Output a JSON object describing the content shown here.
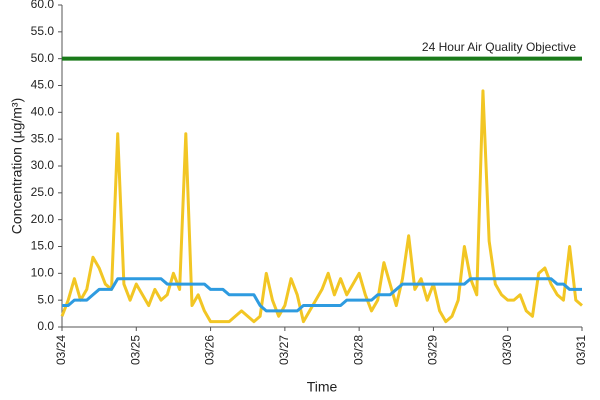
{
  "chart_data": {
    "type": "line",
    "y_label": "Concentration (µg/m³)",
    "x_label": "Time",
    "categories": [
      "03/24",
      null,
      null,
      null,
      null,
      null,
      null,
      null,
      null,
      null,
      null,
      null,
      "03/25",
      null,
      null,
      null,
      null,
      null,
      null,
      null,
      null,
      null,
      null,
      null,
      "03/26",
      null,
      null,
      null,
      null,
      null,
      null,
      null,
      null,
      null,
      null,
      null,
      "03/27",
      null,
      null,
      null,
      null,
      null,
      null,
      null,
      null,
      null,
      null,
      null,
      "03/28",
      null,
      null,
      null,
      null,
      null,
      null,
      null,
      null,
      null,
      null,
      null,
      "03/29",
      null,
      null,
      null,
      null,
      null,
      null,
      null,
      null,
      null,
      null,
      null,
      "03/30",
      null,
      null,
      null,
      null,
      null,
      null,
      null,
      null,
      null,
      null,
      null,
      "03/31"
    ],
    "series": [
      {
        "color": "#f2c624",
        "values": [
          2,
          5,
          9,
          5,
          7,
          13,
          11,
          8,
          7,
          36,
          8,
          5,
          8,
          6,
          4,
          7,
          5,
          6,
          10,
          7,
          36,
          4,
          6,
          3,
          1,
          1,
          1,
          1,
          2,
          3,
          2,
          1,
          2,
          10,
          5,
          2,
          4,
          9,
          6,
          1,
          3,
          5,
          7,
          10,
          6,
          9,
          6,
          8,
          10,
          6,
          3,
          5,
          12,
          8,
          4,
          9,
          17,
          7,
          9,
          5,
          8,
          3,
          1,
          2,
          5,
          15,
          9,
          6,
          44,
          16,
          8,
          6,
          5,
          5,
          6,
          3,
          2,
          10,
          11,
          8,
          6,
          5,
          15,
          5,
          4
        ]
      },
      {
        "color": "#2e9be0",
        "values": [
          4,
          4,
          5,
          5,
          5,
          6,
          7,
          7,
          7,
          9,
          9,
          9,
          9,
          9,
          9,
          9,
          9,
          8,
          8,
          8,
          8,
          8,
          8,
          8,
          7,
          7,
          7,
          6,
          6,
          6,
          6,
          6,
          4,
          3,
          3,
          3,
          3,
          3,
          3,
          4,
          4,
          4,
          4,
          4,
          4,
          4,
          5,
          5,
          5,
          5,
          5,
          6,
          6,
          6,
          7,
          8,
          8,
          8,
          8,
          8,
          8,
          8,
          8,
          8,
          8,
          8,
          9,
          9,
          9,
          9,
          9,
          9,
          9,
          9,
          9,
          9,
          9,
          9,
          9,
          9,
          8,
          8,
          7,
          7,
          7
        ]
      }
    ],
    "objective": {
      "value": 50,
      "label": "24 Hour Air Quality Objective",
      "color": "#1a7a1a"
    },
    "ylim": [
      0,
      60
    ],
    "yticks": [
      {
        "value": 0,
        "label": "0.0"
      },
      {
        "value": 5,
        "label": "5.0"
      },
      {
        "value": 10,
        "label": "10.0"
      },
      {
        "value": 15,
        "label": "15.0"
      },
      {
        "value": 20,
        "label": "20.0"
      },
      {
        "value": 25,
        "label": "25.0"
      },
      {
        "value": 30,
        "label": "30.0"
      },
      {
        "value": 35,
        "label": "35.0"
      },
      {
        "value": 40,
        "label": "40.0"
      },
      {
        "value": 45,
        "label": "45.0"
      },
      {
        "value": 50,
        "label": "50.0"
      },
      {
        "value": 55,
        "label": "55.0"
      },
      {
        "value": 60,
        "label": "60.0"
      }
    ],
    "grid": false
  }
}
